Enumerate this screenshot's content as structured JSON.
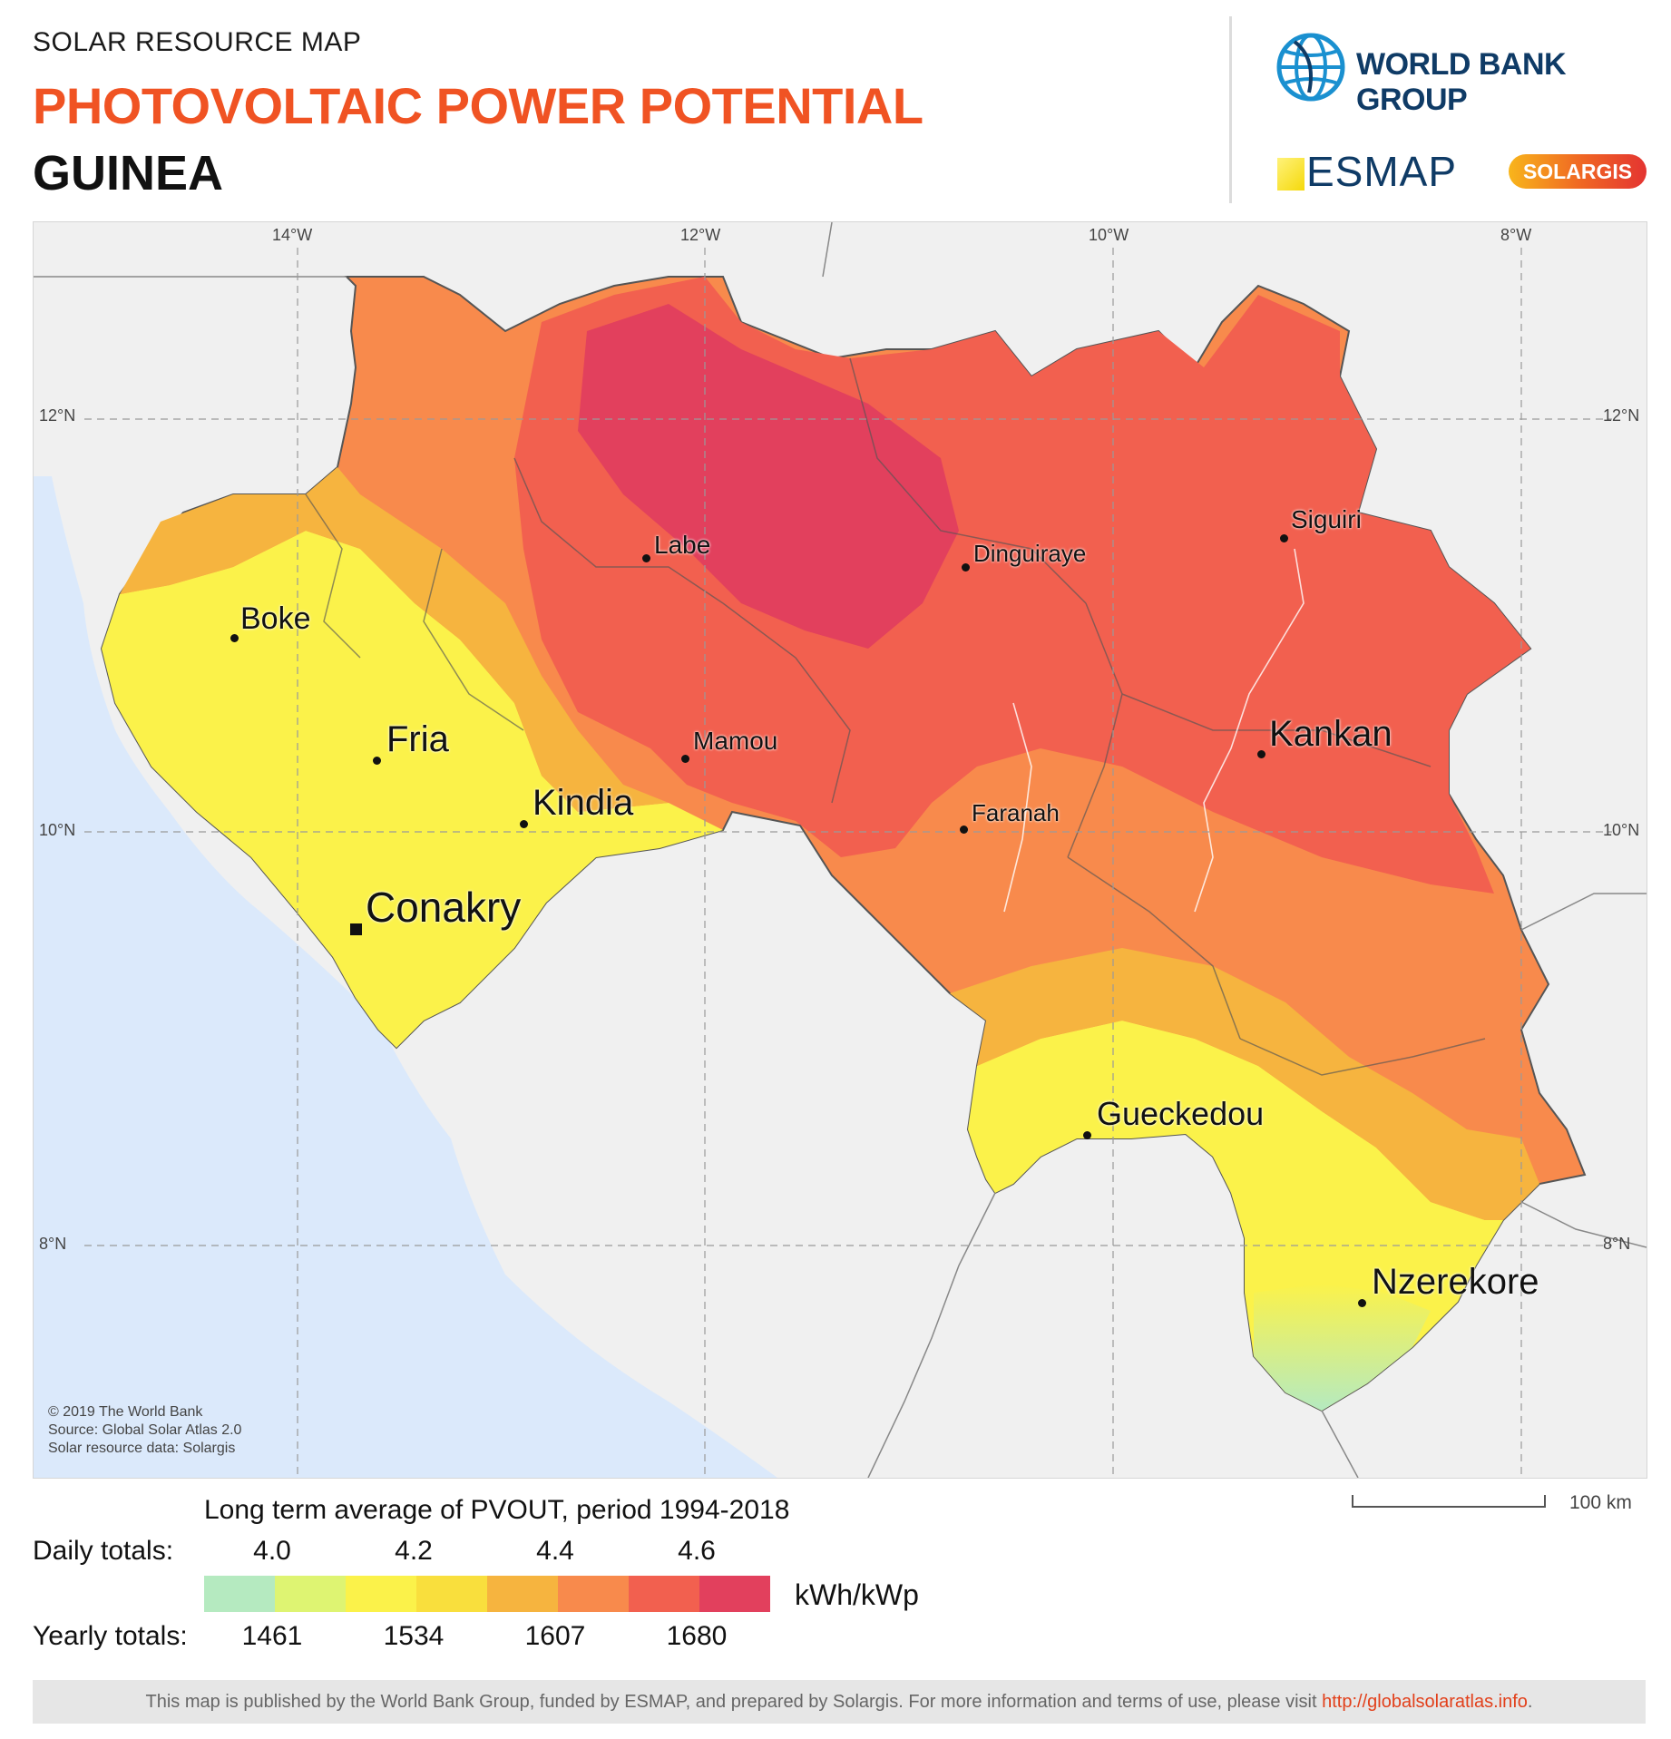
{
  "header": {
    "subtitle": "SOLAR RESOURCE MAP",
    "title": "PHOTOVOLTAIC POWER POTENTIAL",
    "country": "GUINEA"
  },
  "logos": {
    "world_bank": "WORLD BANK GROUP",
    "esmap": "ESMAP",
    "solargis": "SOLARGIS"
  },
  "map": {
    "longitude_labels": [
      "14°W",
      "12°W",
      "10°W",
      "8°W"
    ],
    "latitude_labels": [
      "12°N",
      "10°N",
      "8°N"
    ],
    "cities": [
      {
        "name": "Boke",
        "size": "medium"
      },
      {
        "name": "Labe",
        "size": "small"
      },
      {
        "name": "Dinguiraye",
        "size": "small"
      },
      {
        "name": "Siguiri",
        "size": "small"
      },
      {
        "name": "Fria",
        "size": "large"
      },
      {
        "name": "Mamou",
        "size": "small"
      },
      {
        "name": "Kankan",
        "size": "large"
      },
      {
        "name": "Kindia",
        "size": "large"
      },
      {
        "name": "Faranah",
        "size": "small"
      },
      {
        "name": "Conakry",
        "size": "capital"
      },
      {
        "name": "Gueckedou",
        "size": "large"
      },
      {
        "name": "Nzerekore",
        "size": "large"
      }
    ],
    "credits": [
      "© 2019 The World Bank",
      "Source: Global Solar Atlas 2.0",
      "Solar resource data: Solargis"
    ],
    "colors": {
      "ocean": "#dbe9fb",
      "land_outside": "#f1f1f1",
      "border": "#555555"
    }
  },
  "legend": {
    "title": "Long term average of PVOUT, period 1994-2018",
    "daily_label": "Daily totals:",
    "yearly_label": "Yearly totals:",
    "daily_values": [
      "4.0",
      "4.2",
      "4.4",
      "4.6"
    ],
    "yearly_values": [
      "1461",
      "1534",
      "1607",
      "1680"
    ],
    "unit": "kWh/kWp",
    "colors": [
      "#b5eac0",
      "#def472",
      "#fbf24a",
      "#f9df3d",
      "#f6b43f",
      "#f88a4c",
      "#f2604f",
      "#e2405d"
    ]
  },
  "scale": {
    "label": "100 km"
  },
  "footer": {
    "text": "This map is published by the World Bank Group, funded by ESMAP, and prepared by Solargis. For more information and terms of use, please visit ",
    "link": "http://globalsolaratlas.info",
    "end": "."
  }
}
